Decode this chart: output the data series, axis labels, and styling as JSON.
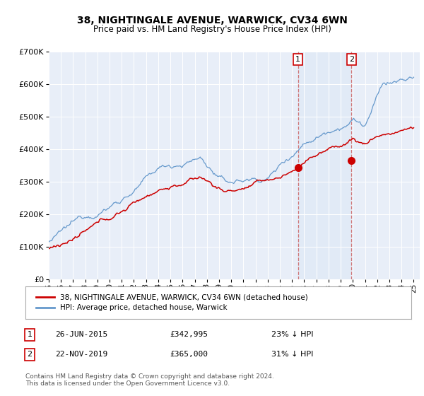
{
  "title": "38, NIGHTINGALE AVENUE, WARWICK, CV34 6WN",
  "subtitle": "Price paid vs. HM Land Registry's House Price Index (HPI)",
  "ylabel_end": 700000,
  "ylabel_step": 100000,
  "x_start_year": 1995,
  "x_end_year": 2025,
  "sale1_date": "26-JUN-2015",
  "sale1_price": 342995,
  "sale1_label": "23% ↓ HPI",
  "sale1_x": 2015.48,
  "sale2_date": "22-NOV-2019",
  "sale2_price": 365000,
  "sale2_label": "31% ↓ HPI",
  "sale2_x": 2019.89,
  "legend_line1": "38, NIGHTINGALE AVENUE, WARWICK, CV34 6WN (detached house)",
  "legend_line2": "HPI: Average price, detached house, Warwick",
  "footer": "Contains HM Land Registry data © Crown copyright and database right 2024.\nThis data is licensed under the Open Government Licence v3.0.",
  "red_color": "#cc0000",
  "blue_color": "#6699cc",
  "blue_fill": "#dde8f5",
  "background_chart": "#e8eef8",
  "background_fig": "#ffffff",
  "vline_color": "#cc6666",
  "annotation_box_color": "#cc0000",
  "grid_color": "#ffffff"
}
